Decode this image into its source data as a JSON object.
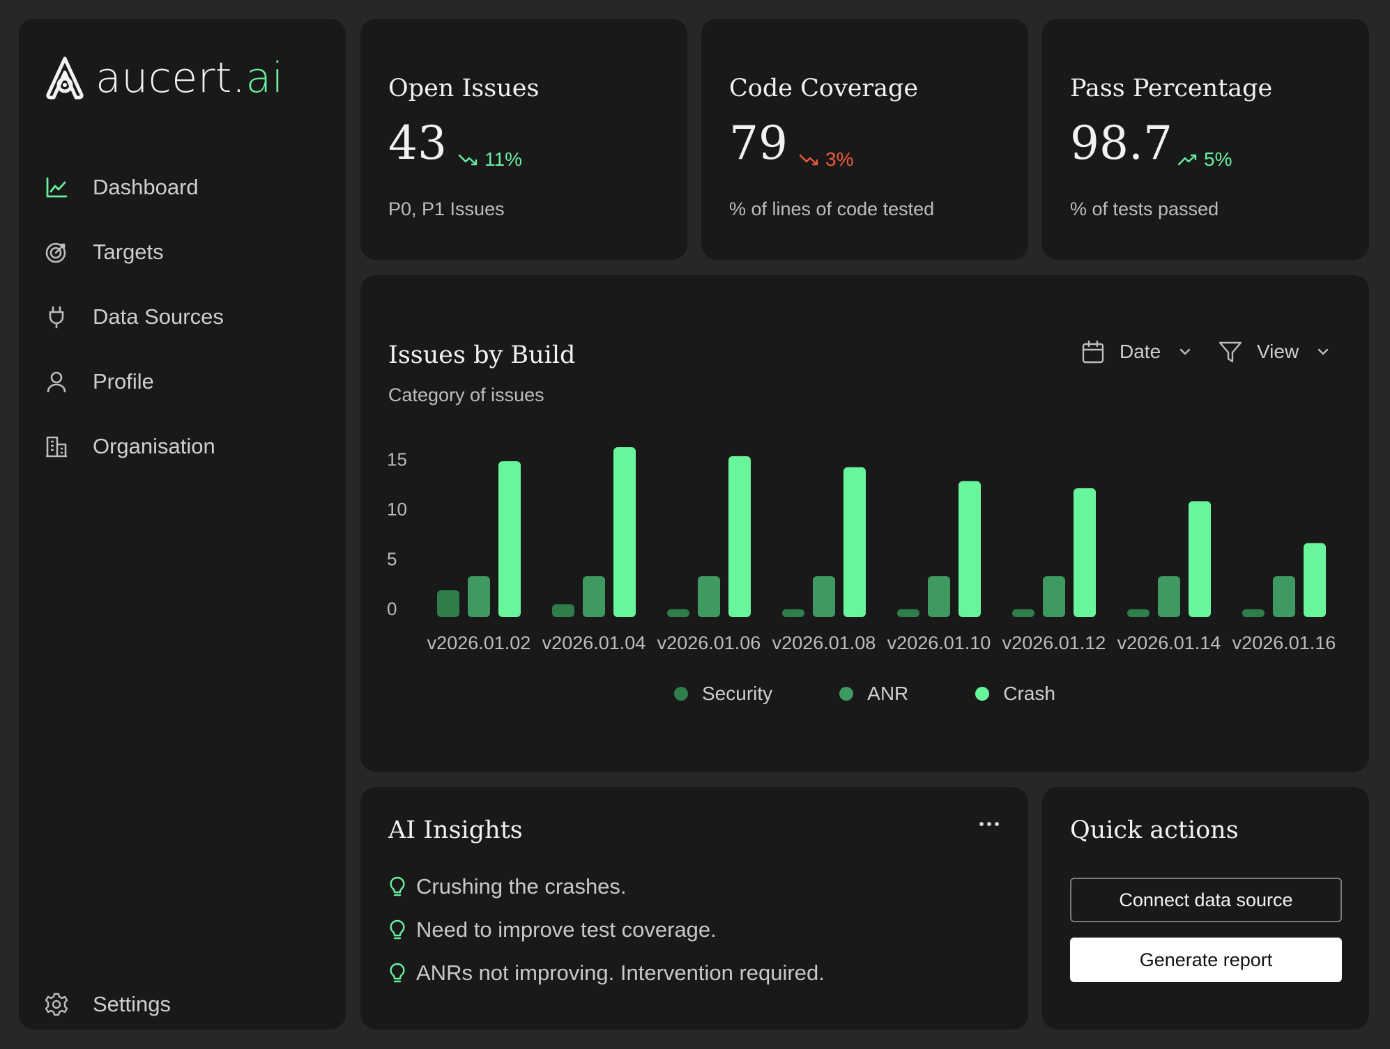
{
  "brand": {
    "name_main": "aucert",
    "name_dot": ".",
    "name_suffix": "ai"
  },
  "sidebar": {
    "items": [
      {
        "label": "Dashboard",
        "icon": "line-chart-icon",
        "active": true
      },
      {
        "label": "Targets",
        "icon": "target-icon"
      },
      {
        "label": "Data Sources",
        "icon": "plug-icon"
      },
      {
        "label": "Profile",
        "icon": "user-icon"
      },
      {
        "label": "Organisation",
        "icon": "building-icon"
      }
    ],
    "settings_label": "Settings"
  },
  "stats": {
    "open_issues": {
      "title": "Open Issues",
      "value": "43",
      "delta": "11%",
      "trend": "down",
      "sub": "P0, P1 Issues"
    },
    "code_coverage": {
      "title": "Code Coverage",
      "value": "79",
      "delta": "3%",
      "trend": "down",
      "sub": "% of lines of code tested"
    },
    "pass_percentage": {
      "title": "Pass Percentage",
      "value": "98.7",
      "delta": "5%",
      "trend": "up",
      "sub": "% of tests passed"
    }
  },
  "issues_chart": {
    "title": "Issues by Build",
    "subtitle": "Category of issues",
    "date_label": "Date",
    "view_label": "View"
  },
  "chart_data": {
    "type": "bar",
    "categories": [
      "v2026.01.02",
      "v2026.01.04",
      "v2026.01.06",
      "v2026.01.08",
      "v2026.01.10",
      "v2026.01.12",
      "v2026.01.14",
      "v2026.01.16"
    ],
    "series": [
      {
        "name": "Security",
        "values": [
          2.7,
          1.3,
          0.8,
          0.8,
          0.8,
          0.8,
          0.8,
          0.8
        ],
        "color": "#2e7d4b"
      },
      {
        "name": "ANR",
        "values": [
          4.1,
          4.1,
          4.1,
          4.1,
          4.1,
          4.1,
          4.1,
          4.1
        ],
        "color": "#3f9a62"
      },
      {
        "name": "Crash",
        "values": [
          15.6,
          17.0,
          16.1,
          15.0,
          13.6,
          12.9,
          11.6,
          7.4
        ],
        "color": "#69f59b"
      }
    ],
    "yticks": [
      0,
      5,
      10,
      15
    ],
    "ylim": [
      0,
      17
    ]
  },
  "insights": {
    "title": "AI Insights",
    "items": [
      "Crushing the crashes.",
      "Need to improve test coverage.",
      "ANRs not improving. Intervention required."
    ]
  },
  "quick_actions": {
    "title": "Quick actions",
    "connect_label": "Connect data source",
    "report_label": "Generate report"
  },
  "colors": {
    "accent": "#69f0a0",
    "negative": "#ef5a3c",
    "panel": "#191919",
    "background": "#272727"
  }
}
